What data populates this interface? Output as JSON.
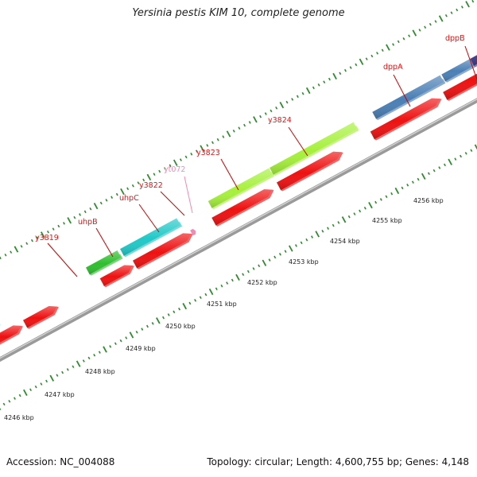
{
  "title": "Yersinia pestis KIM 10, complete genome",
  "footer": {
    "accession": "Accession: NC_004088",
    "summary": "Topology: circular; Length: 4,600,755 bp; Genes: 4,148"
  },
  "colors": {
    "background": "#ffffff",
    "backbone": "#8a8a8a",
    "tick": "#2e8b2e",
    "label": "#cc0000",
    "trna_label": "#f08cb4",
    "cds": "#ee1111"
  },
  "map": {
    "kbp_ticks": [
      "4246 kbp",
      "4247 kbp",
      "4248 kbp",
      "4249 kbp",
      "4250 kbp",
      "4251 kbp",
      "4252 kbp",
      "4253 kbp",
      "4254 kbp",
      "4255 kbp",
      "4256 kbp"
    ],
    "genes": [
      {
        "name": "y3819",
        "color": "#ee1111"
      },
      {
        "name": "uhpB",
        "color": "#ee1111"
      },
      {
        "name": "uhpC",
        "color": "#ee1111"
      },
      {
        "name": "y3822",
        "color": "#ee1111"
      },
      {
        "name": "yt072",
        "color": "#f08cb4"
      },
      {
        "name": "y3823",
        "color": "#ee1111"
      },
      {
        "name": "y3824",
        "color": "#ee1111"
      },
      {
        "name": "dppA",
        "color": "#ee1111"
      },
      {
        "name": "dppB",
        "color": "#ee1111"
      }
    ],
    "cog_colors": [
      "#38c8f0",
      "#2fbe2f",
      "#22c8c8",
      "#a6f03c",
      "#4a7fb5",
      "#3c3c8c"
    ]
  }
}
